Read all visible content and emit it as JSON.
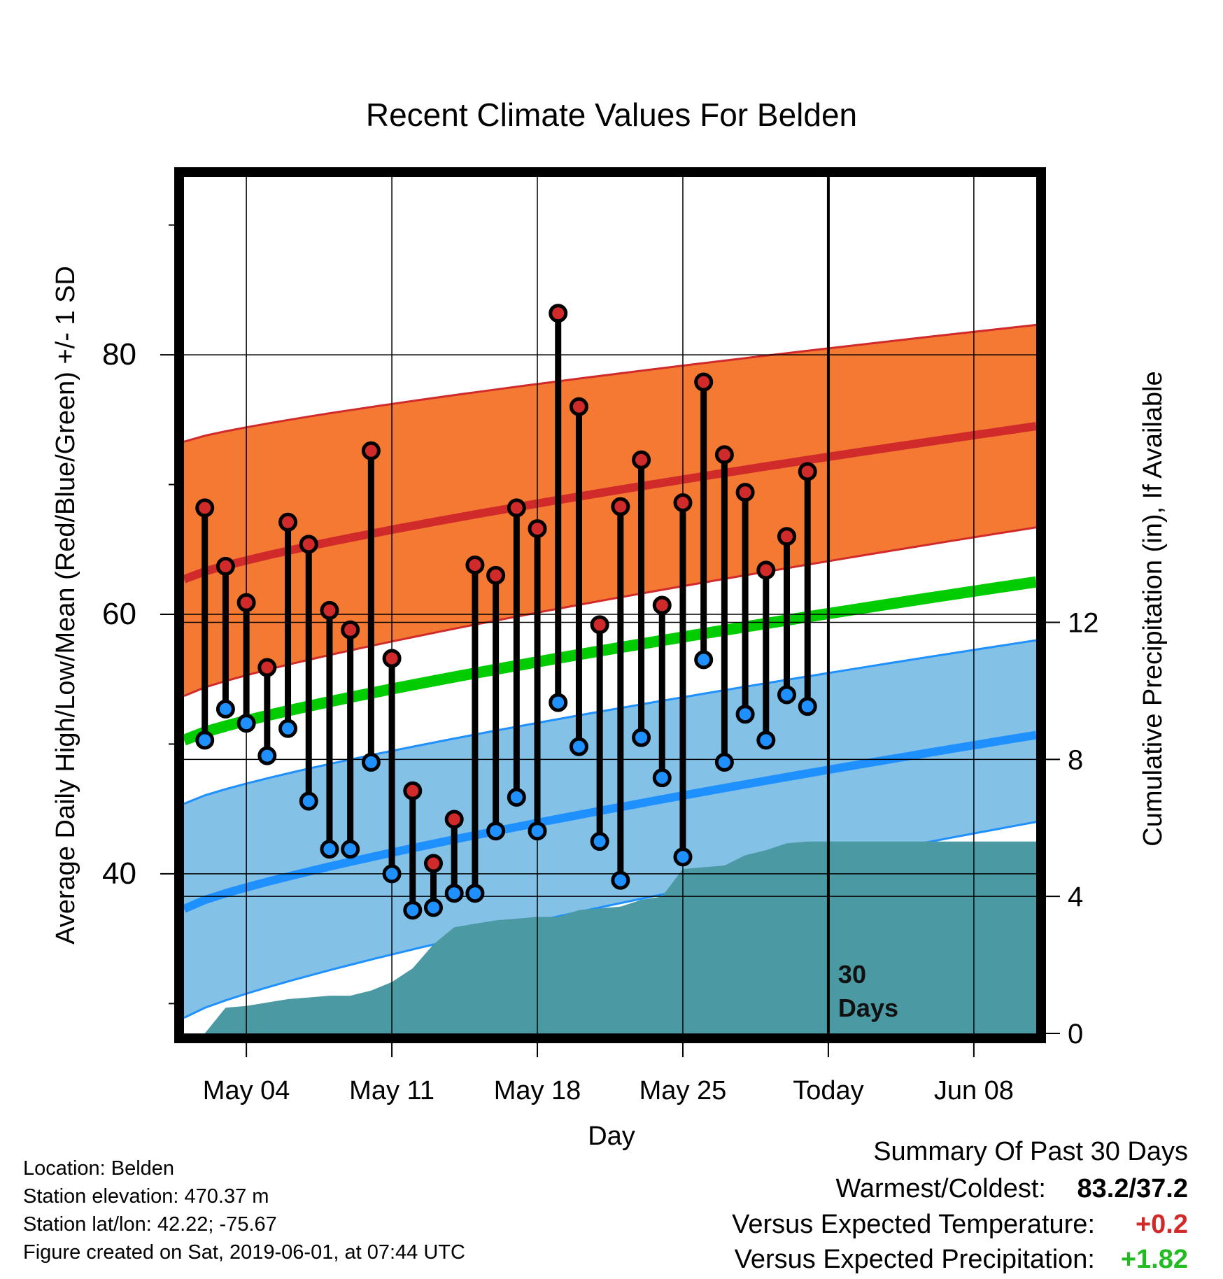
{
  "chart_data": {
    "type": "line",
    "title": "Recent Climate Values For Belden",
    "xlabel": "Day",
    "ylabel_left": "Average Daily High/Low/Mean (Red/Blue/Green) +/- 1 SD",
    "ylabel_right": "Cumulative Precipitation (in), If Available",
    "x_range": [
      "2019-05-01",
      "2019-06-11"
    ],
    "y_left_range": [
      27.7,
      93.7
    ],
    "y_right_range": [
      0,
      25
    ],
    "x_ticks": [
      {
        "date": "2019-05-04",
        "label": "May 04"
      },
      {
        "date": "2019-05-11",
        "label": "May 11"
      },
      {
        "date": "2019-05-18",
        "label": "May 18"
      },
      {
        "date": "2019-05-25",
        "label": "May 25"
      },
      {
        "date": "2019-06-01",
        "label": "Today"
      },
      {
        "date": "2019-06-08",
        "label": "Jun 08"
      }
    ],
    "y_left_ticks": [
      {
        "value": 40,
        "label": "40"
      },
      {
        "value": 60,
        "label": "60"
      },
      {
        "value": 80,
        "label": "80"
      }
    ],
    "y_left_minor_ticks": [
      30,
      50,
      70,
      90
    ],
    "y_right_ticks": [
      {
        "value": 0,
        "label": "0"
      },
      {
        "value": 4,
        "label": "4"
      },
      {
        "value": 8,
        "label": "8"
      },
      {
        "value": 12,
        "label": "12"
      }
    ],
    "today": "2019-06-01",
    "today_label": [
      "30",
      "Days"
    ],
    "grid": true,
    "normals": {
      "high_mean": {
        "start": 62.7,
        "end": 74.5,
        "color": "#d12a2a"
      },
      "high_band": {
        "lower_start": 53.7,
        "lower_end": 66.7,
        "upper_start": 73.3,
        "upper_end": 82.3,
        "color": "#f47a33"
      },
      "low_mean": {
        "start": 37.3,
        "end": 50.7,
        "color": "#1e90ff"
      },
      "low_band": {
        "lower_start": 28.9,
        "lower_end": 44.0,
        "upper_start": 45.4,
        "upper_end": 58.0,
        "color": "#83c2e6"
      },
      "mean": {
        "start": 50.3,
        "end": 62.5,
        "color": "#00cc00"
      }
    },
    "daily": [
      {
        "date": "2019-05-02",
        "high": 68.2,
        "low": 50.3
      },
      {
        "date": "2019-05-03",
        "high": 63.7,
        "low": 52.7
      },
      {
        "date": "2019-05-04",
        "high": 60.9,
        "low": 51.6
      },
      {
        "date": "2019-05-05",
        "high": 55.9,
        "low": 49.1
      },
      {
        "date": "2019-05-06",
        "high": 67.1,
        "low": 51.2
      },
      {
        "date": "2019-05-07",
        "high": 65.4,
        "low": 45.6
      },
      {
        "date": "2019-05-08",
        "high": 60.3,
        "low": 41.9
      },
      {
        "date": "2019-05-09",
        "high": 58.8,
        "low": 41.9
      },
      {
        "date": "2019-05-10",
        "high": 72.6,
        "low": 48.6
      },
      {
        "date": "2019-05-11",
        "high": 56.6,
        "low": 40.0
      },
      {
        "date": "2019-05-12",
        "high": 46.4,
        "low": 37.2
      },
      {
        "date": "2019-05-13",
        "high": 40.8,
        "low": 37.4
      },
      {
        "date": "2019-05-14",
        "high": 44.2,
        "low": 38.5
      },
      {
        "date": "2019-05-15",
        "high": 63.8,
        "low": 38.5
      },
      {
        "date": "2019-05-16",
        "high": 63.0,
        "low": 43.3
      },
      {
        "date": "2019-05-17",
        "high": 68.2,
        "low": 45.9
      },
      {
        "date": "2019-05-18",
        "high": 66.6,
        "low": 43.3
      },
      {
        "date": "2019-05-19",
        "high": 83.2,
        "low": 53.2
      },
      {
        "date": "2019-05-20",
        "high": 76.0,
        "low": 49.8
      },
      {
        "date": "2019-05-21",
        "high": 59.2,
        "low": 42.5
      },
      {
        "date": "2019-05-22",
        "high": 68.3,
        "low": 39.5
      },
      {
        "date": "2019-05-23",
        "high": 71.9,
        "low": 50.5
      },
      {
        "date": "2019-05-24",
        "high": 60.7,
        "low": 47.4
      },
      {
        "date": "2019-05-25",
        "high": 68.6,
        "low": 41.3
      },
      {
        "date": "2019-05-26",
        "high": 77.9,
        "low": 56.5
      },
      {
        "date": "2019-05-27",
        "high": 72.3,
        "low": 48.6
      },
      {
        "date": "2019-05-28",
        "high": 69.4,
        "low": 52.3
      },
      {
        "date": "2019-05-29",
        "high": 63.4,
        "low": 50.3
      },
      {
        "date": "2019-05-30",
        "high": 66.0,
        "low": 53.8
      },
      {
        "date": "2019-05-31",
        "high": 71.0,
        "low": 52.9
      }
    ],
    "precip_cumulative": [
      {
        "date": "2019-05-02",
        "value": 0.0
      },
      {
        "date": "2019-05-03",
        "value": 0.75
      },
      {
        "date": "2019-05-04",
        "value": 0.8
      },
      {
        "date": "2019-05-05",
        "value": 0.9
      },
      {
        "date": "2019-05-06",
        "value": 1.0
      },
      {
        "date": "2019-05-07",
        "value": 1.05
      },
      {
        "date": "2019-05-08",
        "value": 1.1
      },
      {
        "date": "2019-05-09",
        "value": 1.1
      },
      {
        "date": "2019-05-10",
        "value": 1.25
      },
      {
        "date": "2019-05-11",
        "value": 1.5
      },
      {
        "date": "2019-05-12",
        "value": 1.9
      },
      {
        "date": "2019-05-13",
        "value": 2.6
      },
      {
        "date": "2019-05-14",
        "value": 3.1
      },
      {
        "date": "2019-05-15",
        "value": 3.2
      },
      {
        "date": "2019-05-16",
        "value": 3.3
      },
      {
        "date": "2019-05-17",
        "value": 3.35
      },
      {
        "date": "2019-05-18",
        "value": 3.4
      },
      {
        "date": "2019-05-19",
        "value": 3.4
      },
      {
        "date": "2019-05-20",
        "value": 3.6
      },
      {
        "date": "2019-05-21",
        "value": 3.65
      },
      {
        "date": "2019-05-22",
        "value": 3.7
      },
      {
        "date": "2019-05-23",
        "value": 3.9
      },
      {
        "date": "2019-05-24",
        "value": 4.0
      },
      {
        "date": "2019-05-25",
        "value": 4.8
      },
      {
        "date": "2019-05-26",
        "value": 4.85
      },
      {
        "date": "2019-05-27",
        "value": 4.9
      },
      {
        "date": "2019-05-28",
        "value": 5.2
      },
      {
        "date": "2019-05-29",
        "value": 5.35
      },
      {
        "date": "2019-05-30",
        "value": 5.55
      },
      {
        "date": "2019-05-31",
        "value": 5.6
      },
      {
        "date": "2019-06-11",
        "value": 5.6
      }
    ],
    "precip_color": "#4b9aa3"
  },
  "info": {
    "location": "Location: Belden",
    "elevation": "Station elevation: 470.37 m",
    "latlon": "Station lat/lon: 42.22; -75.67",
    "created": "Figure created on Sat, 2019-06-01, at 07:44 UTC"
  },
  "summary": {
    "heading": "Summary Of Past 30 Days",
    "warm_label": "Warmest/Coldest:",
    "warm_value": "83.2/37.2",
    "temp_label": "Versus Expected Temperature:",
    "temp_value": "+0.2",
    "temp_color": "#d12a2a",
    "precip_label": "Versus Expected Precipitation:",
    "precip_value": "+1.82",
    "precip_color": "#22bb22"
  }
}
